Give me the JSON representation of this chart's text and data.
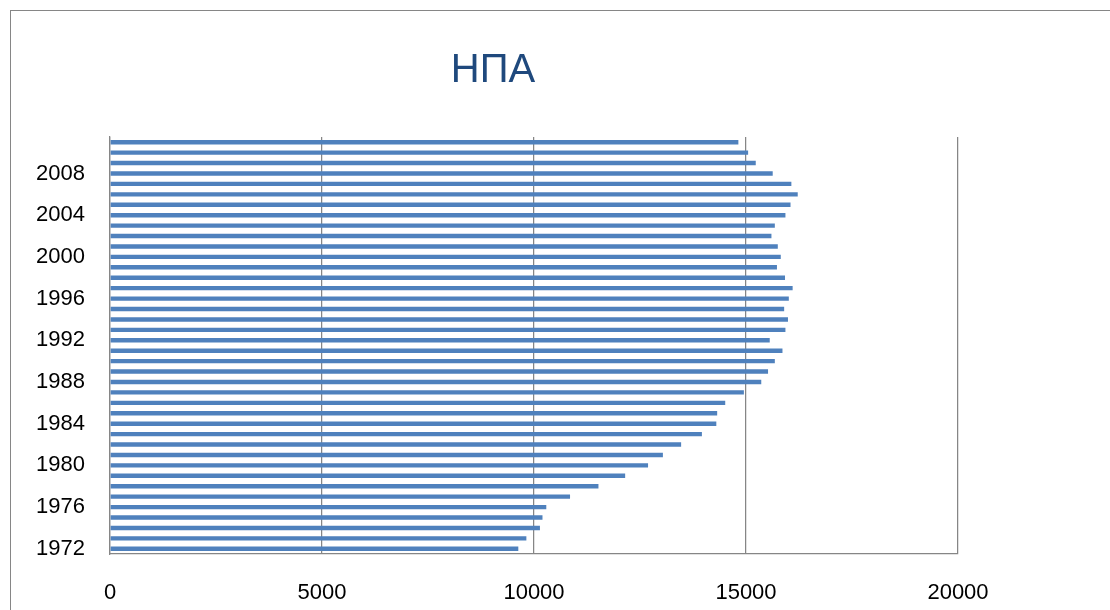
{
  "chart_data": {
    "type": "bar",
    "title": "НПА",
    "orientation": "horizontal",
    "categories": [
      null,
      null,
      null,
      "2008",
      null,
      null,
      null,
      "2004",
      null,
      null,
      null,
      "2000",
      null,
      null,
      null,
      "1996",
      null,
      null,
      null,
      "1992",
      null,
      null,
      null,
      "1988",
      null,
      null,
      null,
      "1984",
      null,
      null,
      null,
      "1980",
      null,
      null,
      null,
      "1976",
      null,
      null,
      null,
      "1972"
    ],
    "values": [
      14820,
      15050,
      15230,
      15630,
      16070,
      16220,
      16050,
      15930,
      15680,
      15600,
      15750,
      15820,
      15730,
      15920,
      16100,
      16010,
      15900,
      15990,
      15930,
      15560,
      15860,
      15680,
      15520,
      15360,
      14950,
      14510,
      14320,
      14300,
      13960,
      13470,
      13040,
      12690,
      12150,
      11520,
      10850,
      10290,
      10200,
      10140,
      9820,
      9630
    ],
    "color": "#4f81bd",
    "xlim": [
      0,
      20000
    ],
    "xticks": [
      0,
      5000,
      10000,
      15000,
      20000
    ],
    "grid": "x"
  }
}
